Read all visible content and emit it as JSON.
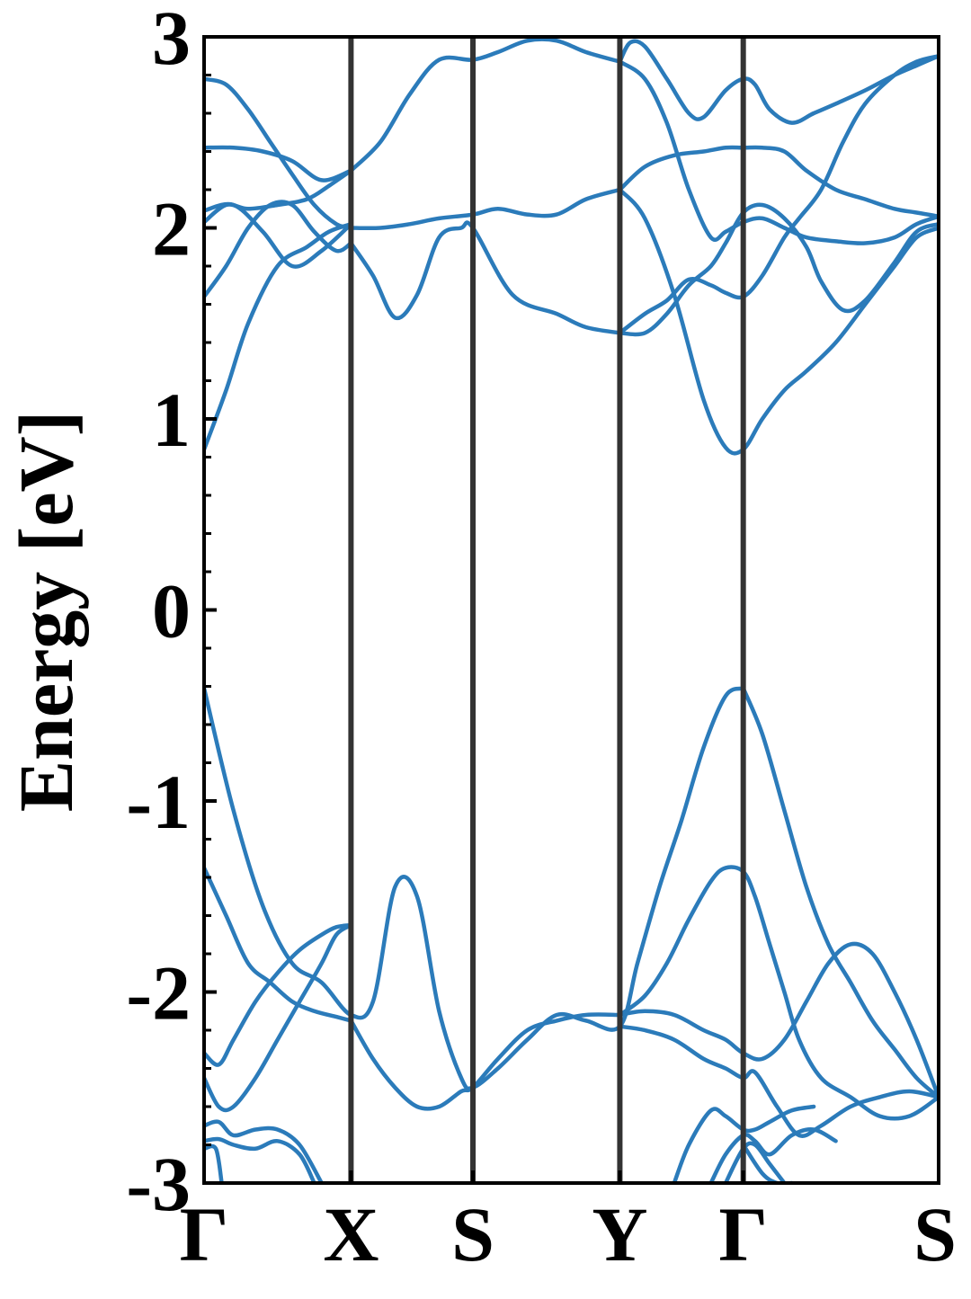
{
  "chart_data": {
    "type": "line",
    "title": "",
    "xlabel": "",
    "ylabel": "Energy [eV]",
    "ylim": [
      -3,
      3
    ],
    "yticks": [
      "3",
      "2",
      "1",
      "0",
      "-1",
      "-2",
      "-3"
    ],
    "ytick_values": [
      3,
      2,
      1,
      0,
      -1,
      -2,
      -3
    ],
    "grid": false,
    "legend": "none",
    "xlim": [
      0,
      5.0
    ],
    "kpoints": [
      {
        "label": "Γ",
        "x": 0.0
      },
      {
        "label": "X",
        "x": 1.0
      },
      {
        "label": "S",
        "x": 1.83
      },
      {
        "label": "Y",
        "x": 2.83
      },
      {
        "label": "Γ",
        "x": 3.67
      },
      {
        "label": "S",
        "x": 5.0
      }
    ],
    "colors": {
      "band": "#2b7bba",
      "kline": "#333333",
      "axis": "#000000"
    },
    "series": [
      {
        "x": [
          0.0,
          0.2,
          0.4,
          0.6,
          0.8,
          1.0,
          1.15,
          1.3,
          1.45,
          1.6,
          1.75,
          1.83,
          2.0,
          2.2,
          2.4,
          2.6,
          2.83,
          2.95,
          3.1,
          3.25,
          3.4,
          3.55,
          3.67
        ],
        "y": [
          -0.41,
          -1.05,
          -1.55,
          -1.85,
          -1.95,
          -2.12,
          -2.05,
          -1.45,
          -1.5,
          -2.1,
          -2.45,
          -2.5,
          -2.4,
          -2.25,
          -2.12,
          -2.15,
          -2.18,
          -1.85,
          -1.45,
          -1.1,
          -0.72,
          -0.45,
          -0.41
        ]
      },
      {
        "x": [
          3.67,
          3.8,
          3.95,
          4.1,
          4.25,
          4.4,
          4.55,
          4.7,
          4.85,
          5.0
        ],
        "y": [
          -0.41,
          -0.65,
          -1.05,
          -1.45,
          -1.75,
          -1.95,
          -2.15,
          -2.3,
          -2.45,
          -2.55
        ]
      },
      {
        "x": [
          0.0,
          0.15,
          0.3,
          0.45,
          0.6,
          0.75,
          0.9,
          1.0
        ],
        "y": [
          -1.35,
          -1.6,
          -1.85,
          -1.95,
          -2.05,
          -2.1,
          -2.13,
          -2.15
        ]
      },
      {
        "x": [
          1.0,
          1.15,
          1.3,
          1.45,
          1.6,
          1.75,
          1.83,
          2.0,
          2.2,
          2.4,
          2.6,
          2.83
        ],
        "y": [
          -2.15,
          -2.35,
          -2.5,
          -2.6,
          -2.6,
          -2.52,
          -2.5,
          -2.35,
          -2.2,
          -2.15,
          -2.12,
          -2.12
        ]
      },
      {
        "x": [
          0.0,
          0.1,
          0.2,
          0.35,
          0.5,
          0.65,
          0.8,
          0.9,
          1.0
        ],
        "y": [
          -2.32,
          -2.38,
          -2.25,
          -2.05,
          -1.9,
          -1.78,
          -1.7,
          -1.66,
          -1.65
        ]
      },
      {
        "x": [
          0.0,
          0.1,
          0.2,
          0.35,
          0.5,
          0.65,
          0.8,
          0.9,
          1.0
        ],
        "y": [
          -2.45,
          -2.6,
          -2.6,
          -2.45,
          -2.25,
          -2.05,
          -1.85,
          -1.7,
          -1.65
        ]
      },
      {
        "x": [
          2.83,
          3.0,
          3.2,
          3.4,
          3.55,
          3.67,
          3.8,
          3.95,
          4.1,
          4.25,
          4.4,
          4.55,
          4.7,
          4.85,
          5.0
        ],
        "y": [
          -2.12,
          -2.1,
          -2.12,
          -2.2,
          -2.25,
          -2.32,
          -2.35,
          -2.25,
          -2.05,
          -1.85,
          -1.75,
          -1.8,
          -2.0,
          -2.25,
          -2.55
        ]
      },
      {
        "x": [
          2.83,
          3.0,
          3.15,
          3.3,
          3.45,
          3.55,
          3.67,
          3.75,
          3.85,
          3.95,
          4.05,
          4.2,
          4.4,
          4.6,
          4.8,
          5.0
        ],
        "y": [
          -2.12,
          -2.02,
          -1.85,
          -1.62,
          -1.42,
          -1.35,
          -1.37,
          -1.5,
          -1.75,
          -2.0,
          -2.25,
          -2.45,
          -2.55,
          -2.65,
          -2.65,
          -2.55
        ]
      },
      {
        "x": [
          2.83,
          3.0,
          3.2,
          3.4,
          3.55,
          3.67,
          3.75,
          3.9,
          4.05,
          4.2,
          4.4,
          4.6,
          4.8,
          5.0
        ],
        "y": [
          -2.18,
          -2.2,
          -2.25,
          -2.35,
          -2.4,
          -2.45,
          -2.42,
          -2.6,
          -2.75,
          -2.7,
          -2.6,
          -2.55,
          -2.52,
          -2.55
        ]
      },
      {
        "x": [
          0.0,
          0.1,
          0.2,
          0.35,
          0.5,
          0.65,
          0.8
        ],
        "y": [
          -2.7,
          -2.68,
          -2.75,
          -2.72,
          -2.72,
          -2.8,
          -3.0
        ]
      },
      {
        "x": [
          0.0,
          0.1,
          0.2,
          0.35,
          0.5,
          0.65,
          0.75
        ],
        "y": [
          -2.78,
          -2.77,
          -2.8,
          -2.82,
          -2.78,
          -2.85,
          -3.0
        ]
      },
      {
        "x": [
          0.0,
          0.08,
          0.12
        ],
        "y": [
          -2.82,
          -2.82,
          -3.0
        ]
      },
      {
        "x": [
          3.2,
          3.3,
          3.45,
          3.55,
          3.67,
          3.75,
          3.85,
          4.0,
          4.15
        ],
        "y": [
          -3.0,
          -2.8,
          -2.62,
          -2.65,
          -2.72,
          -2.72,
          -2.68,
          -2.62,
          -2.6
        ]
      },
      {
        "x": [
          3.45,
          3.55,
          3.67,
          3.75,
          3.85,
          4.0,
          4.15,
          4.3
        ],
        "y": [
          -3.0,
          -2.85,
          -2.75,
          -2.78,
          -2.85,
          -2.75,
          -2.72,
          -2.78
        ]
      },
      {
        "x": [
          3.55,
          3.67,
          3.75,
          3.85,
          3.95
        ],
        "y": [
          -3.0,
          -2.82,
          -2.8,
          -2.9,
          -3.0
        ]
      },
      {
        "x": [
          3.67,
          3.8,
          3.9,
          4.0
        ],
        "y": [
          -2.8,
          -2.95,
          -3.0,
          -3.0
        ]
      },
      {
        "x": [
          0.0,
          0.15,
          0.3,
          0.5,
          0.7,
          0.85,
          1.0
        ],
        "y": [
          0.84,
          1.15,
          1.5,
          1.8,
          1.9,
          1.98,
          2.02
        ]
      },
      {
        "x": [
          0.0,
          0.15,
          0.3,
          0.45,
          0.6,
          0.75,
          0.9,
          1.0
        ],
        "y": [
          1.64,
          1.8,
          2.0,
          2.12,
          2.12,
          1.98,
          1.88,
          1.92
        ]
      },
      {
        "x": [
          0.0,
          0.15,
          0.3,
          0.5,
          0.7,
          0.85,
          1.0
        ],
        "y": [
          2.03,
          2.12,
          2.1,
          2.12,
          2.15,
          2.22,
          2.3
        ]
      },
      {
        "x": [
          0.0,
          0.2,
          0.4,
          0.6,
          0.8,
          1.0
        ],
        "y": [
          2.09,
          2.12,
          1.98,
          1.8,
          1.88,
          2.02
        ]
      },
      {
        "x": [
          0.0,
          0.2,
          0.4,
          0.6,
          0.8,
          1.0
        ],
        "y": [
          2.42,
          2.42,
          2.4,
          2.35,
          2.25,
          2.3
        ]
      },
      {
        "x": [
          0.0,
          0.15,
          0.3,
          0.45,
          0.6,
          0.75,
          0.9,
          1.0
        ],
        "y": [
          2.78,
          2.75,
          2.62,
          2.45,
          2.28,
          2.12,
          2.02,
          2.0
        ]
      },
      {
        "x": [
          1.0,
          1.15,
          1.3,
          1.45,
          1.6,
          1.75,
          1.83,
          2.1,
          2.4,
          2.6,
          2.83
        ],
        "y": [
          1.92,
          1.75,
          1.53,
          1.65,
          1.95,
          2.0,
          2.0,
          1.65,
          1.55,
          1.48,
          1.45
        ]
      },
      {
        "x": [
          1.0,
          1.2,
          1.4,
          1.6,
          1.83,
          2.0,
          2.2,
          2.4,
          2.6,
          2.83
        ],
        "y": [
          2.0,
          2.0,
          2.02,
          2.05,
          2.07,
          2.1,
          2.07,
          2.07,
          2.15,
          2.2
        ]
      },
      {
        "x": [
          1.0,
          1.2,
          1.4,
          1.6,
          1.83,
          2.0,
          2.2,
          2.4,
          2.6,
          2.83
        ],
        "y": [
          2.3,
          2.45,
          2.7,
          2.88,
          2.88,
          2.92,
          2.98,
          2.98,
          2.92,
          2.87
        ]
      },
      {
        "x": [
          2.83,
          2.9,
          3.0,
          3.15,
          3.3,
          3.4,
          3.55,
          3.67,
          3.75,
          3.85,
          4.0,
          4.15,
          4.3,
          4.5,
          4.7,
          4.85,
          5.0
        ],
        "y": [
          2.87,
          2.97,
          2.95,
          2.78,
          2.6,
          2.58,
          2.72,
          2.78,
          2.75,
          2.62,
          2.55,
          2.6,
          2.65,
          2.72,
          2.8,
          2.85,
          2.9
        ]
      },
      {
        "x": [
          2.83,
          3.0,
          3.15,
          3.3,
          3.45,
          3.55,
          3.67,
          3.8,
          3.95,
          4.1,
          4.3,
          4.5,
          4.7,
          4.85,
          5.0
        ],
        "y": [
          2.87,
          2.78,
          2.55,
          2.2,
          1.95,
          1.98,
          2.03,
          2.05,
          2.0,
          1.95,
          1.93,
          1.92,
          1.95,
          2.02,
          2.06
        ]
      },
      {
        "x": [
          2.83,
          3.0,
          3.2,
          3.4,
          3.55,
          3.67,
          3.8,
          3.95,
          4.1,
          4.3,
          4.5,
          4.7,
          4.85,
          5.0
        ],
        "y": [
          2.2,
          2.32,
          2.38,
          2.4,
          2.42,
          2.42,
          2.42,
          2.4,
          2.3,
          2.2,
          2.15,
          2.1,
          2.08,
          2.06
        ]
      },
      {
        "x": [
          2.83,
          3.0,
          3.2,
          3.4,
          3.55,
          3.67,
          3.8,
          3.95,
          4.1,
          4.3,
          4.5,
          4.7,
          4.85,
          5.0
        ],
        "y": [
          2.2,
          2.05,
          1.65,
          1.1,
          0.85,
          0.84,
          1.0,
          1.15,
          1.25,
          1.4,
          1.6,
          1.8,
          1.95,
          2.0
        ]
      },
      {
        "x": [
          2.83,
          3.0,
          3.15,
          3.3,
          3.45,
          3.55,
          3.67,
          3.8,
          3.95,
          4.1,
          4.2,
          4.35,
          4.5,
          4.7,
          4.85,
          5.0
        ],
        "y": [
          1.45,
          1.45,
          1.55,
          1.7,
          1.8,
          1.92,
          2.08,
          2.12,
          2.05,
          1.9,
          1.72,
          1.57,
          1.62,
          1.82,
          1.98,
          2.02
        ]
      },
      {
        "x": [
          2.83,
          3.0,
          3.15,
          3.3,
          3.45,
          3.55,
          3.67,
          3.8,
          3.95,
          4.05,
          4.2,
          4.35,
          4.5,
          4.7,
          4.85,
          5.0
        ],
        "y": [
          1.45,
          1.55,
          1.62,
          1.73,
          1.7,
          1.66,
          1.64,
          1.75,
          1.95,
          2.05,
          2.2,
          2.45,
          2.65,
          2.8,
          2.87,
          2.9
        ]
      }
    ]
  }
}
